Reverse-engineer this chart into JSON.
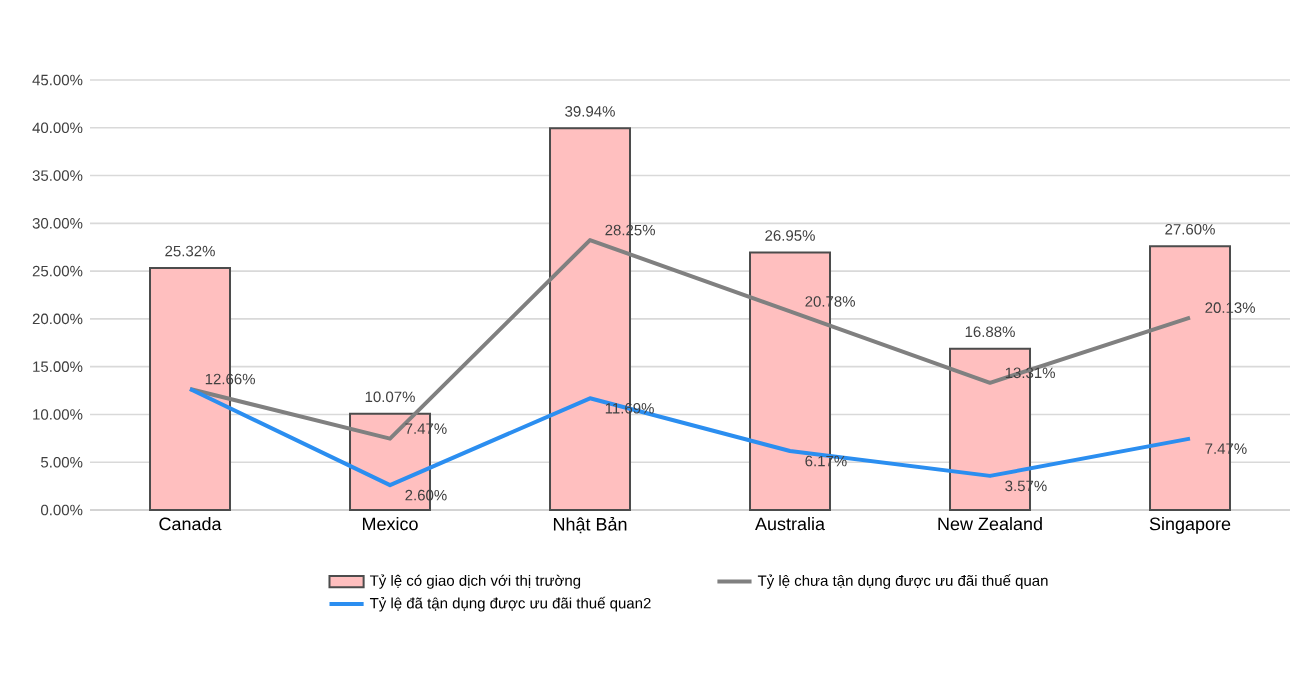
{
  "chart_data": {
    "type": "bar",
    "categories": [
      "Canada",
      "Mexico",
      "Nhật Bản",
      "Australia",
      "New Zealand",
      "Singapore"
    ],
    "series": [
      {
        "name": "Tỷ lệ có giao dịch với thị trường",
        "color": "#ffbfbf",
        "values": [
          25.32,
          10.07,
          39.94,
          26.95,
          16.88,
          27.6
        ],
        "value_labels": [
          "25.32%",
          "10.07%",
          "39.94%",
          "26.95%",
          "16.88%",
          "27.60%"
        ]
      },
      {
        "name": "Tỷ lệ chưa tận dụng được ưu đãi thuế quan",
        "type": "line",
        "color": "#808080",
        "values": [
          12.66,
          7.47,
          28.25,
          20.78,
          13.31,
          20.13
        ],
        "value_labels": [
          "12.66%",
          "7.47%",
          "28.25%",
          "20.78%",
          "13.31%",
          "20.13%"
        ]
      },
      {
        "name": "Tỷ lệ đã tận dụng được ưu đãi thuế quan2",
        "type": "line",
        "color": "#2b8ef0",
        "values": [
          12.66,
          2.6,
          11.69,
          6.17,
          3.57,
          7.47
        ],
        "value_labels": [
          null,
          "2.60%",
          "11.69%",
          "6.17%",
          "3.57%",
          "7.47%"
        ]
      }
    ],
    "ylim": [
      0,
      45
    ],
    "yticks": [
      {
        "value": 0,
        "label": "0.00%"
      },
      {
        "value": 5,
        "label": "5.00%"
      },
      {
        "value": 10,
        "label": "10.00%"
      },
      {
        "value": 15,
        "label": "15.00%"
      },
      {
        "value": 20,
        "label": "20.00%"
      },
      {
        "value": 25,
        "label": "25.00%"
      },
      {
        "value": 30,
        "label": "30.00%"
      },
      {
        "value": 35,
        "label": "35.00%"
      },
      {
        "value": 40,
        "label": "40.00%"
      },
      {
        "value": 45,
        "label": "45.00%"
      }
    ],
    "grid": "y",
    "legend": "bottom"
  }
}
